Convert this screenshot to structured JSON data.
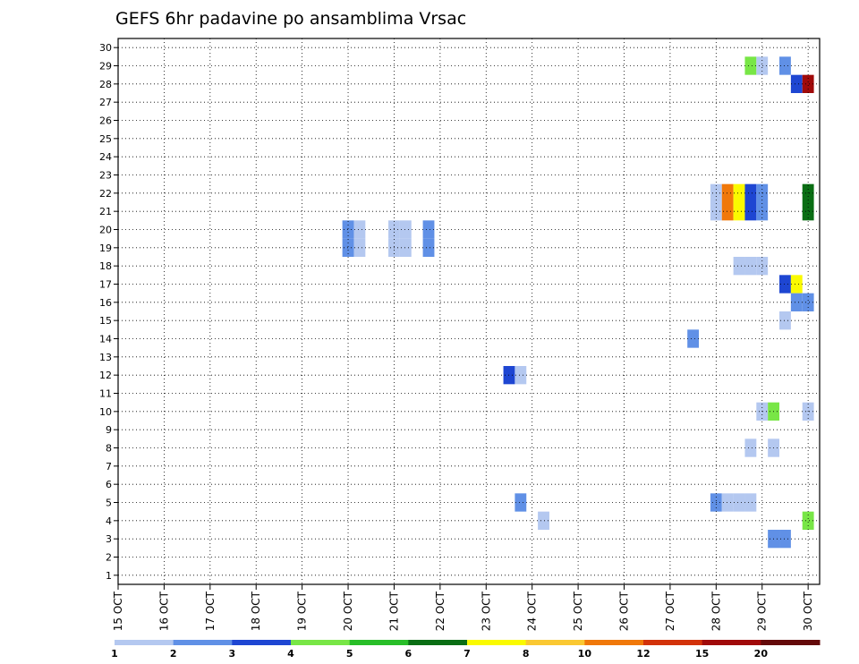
{
  "chart_data": {
    "type": "heatmap",
    "title": "GEFS 6hr padavine po ansamblima Vrsac",
    "xlabel": "",
    "ylabel": "",
    "x_tick_labels": [
      "15 OCT",
      "16 OCT",
      "17 OCT",
      "18 OCT",
      "19 OCT",
      "20 OCT",
      "21 OCT",
      "22 OCT",
      "23 OCT",
      "24 OCT",
      "25 OCT",
      "26 OCT",
      "27 OCT",
      "28 OCT",
      "29 OCT",
      "30 OCT"
    ],
    "xlim": [
      0,
      15.25
    ],
    "y_ticks": [
      1,
      2,
      3,
      4,
      5,
      6,
      7,
      8,
      9,
      10,
      11,
      12,
      13,
      14,
      15,
      16,
      17,
      18,
      19,
      20,
      21,
      22,
      23,
      24,
      25,
      26,
      27,
      28,
      29,
      30
    ],
    "ylim": [
      0.5,
      30.5
    ],
    "grid": true,
    "legend": {
      "placement": "bottom",
      "labels": [
        "1",
        "2",
        "3",
        "4",
        "5",
        "6",
        "7",
        "8",
        "10",
        "12",
        "15",
        "20"
      ],
      "colors": [
        "#b4c8f0",
        "#6090e6",
        "#1e46d2",
        "#78e646",
        "#28be28",
        "#0a6e14",
        "#fafa00",
        "#fac832",
        "#f0780a",
        "#d2320a",
        "#a00a0a",
        "#640a0a"
      ]
    },
    "cells": [
      {
        "x": 13.75,
        "member": 29,
        "color": "#78e646"
      },
      {
        "x": 14.0,
        "member": 29,
        "color": "#b4c8f0"
      },
      {
        "x": 14.5,
        "member": 29,
        "color": "#6090e6"
      },
      {
        "x": 14.75,
        "member": 28,
        "color": "#1e46d2"
      },
      {
        "x": 15.0,
        "member": 28,
        "color": "#a00a0a"
      },
      {
        "x": 13.0,
        "member": 22,
        "color": "#b4c8f0"
      },
      {
        "x": 13.25,
        "member": 22,
        "color": "#f0780a"
      },
      {
        "x": 13.5,
        "member": 22,
        "color": "#fafa00"
      },
      {
        "x": 13.75,
        "member": 22,
        "color": "#1e46d2"
      },
      {
        "x": 14.0,
        "member": 22,
        "color": "#6090e6"
      },
      {
        "x": 15.0,
        "member": 22,
        "color": "#0a6e14"
      },
      {
        "x": 13.0,
        "member": 21,
        "color": "#b4c8f0"
      },
      {
        "x": 13.25,
        "member": 21,
        "color": "#f0780a"
      },
      {
        "x": 13.5,
        "member": 21,
        "color": "#fafa00"
      },
      {
        "x": 13.75,
        "member": 21,
        "color": "#1e46d2"
      },
      {
        "x": 14.0,
        "member": 21,
        "color": "#6090e6"
      },
      {
        "x": 15.0,
        "member": 21,
        "color": "#0a6e14"
      },
      {
        "x": 5.0,
        "member": 20,
        "color": "#6090e6"
      },
      {
        "x": 5.25,
        "member": 20,
        "color": "#b4c8f0"
      },
      {
        "x": 6.0,
        "member": 20,
        "color": "#b4c8f0"
      },
      {
        "x": 6.25,
        "member": 20,
        "color": "#b4c8f0"
      },
      {
        "x": 6.75,
        "member": 20,
        "color": "#6090e6"
      },
      {
        "x": 5.0,
        "member": 19,
        "color": "#6090e6"
      },
      {
        "x": 5.25,
        "member": 19,
        "color": "#b4c8f0"
      },
      {
        "x": 6.0,
        "member": 19,
        "color": "#b4c8f0"
      },
      {
        "x": 6.25,
        "member": 19,
        "color": "#b4c8f0"
      },
      {
        "x": 6.75,
        "member": 19,
        "color": "#6090e6"
      },
      {
        "x": 13.5,
        "member": 18,
        "color": "#b4c8f0"
      },
      {
        "x": 13.75,
        "member": 18,
        "color": "#b4c8f0"
      },
      {
        "x": 14.0,
        "member": 18,
        "color": "#b4c8f0"
      },
      {
        "x": 14.5,
        "member": 17,
        "color": "#1e46d2"
      },
      {
        "x": 14.75,
        "member": 17,
        "color": "#fafa00"
      },
      {
        "x": 14.75,
        "member": 16,
        "color": "#6090e6"
      },
      {
        "x": 15.0,
        "member": 16,
        "color": "#6090e6"
      },
      {
        "x": 14.5,
        "member": 15,
        "color": "#b4c8f0"
      },
      {
        "x": 12.5,
        "member": 14,
        "color": "#6090e6"
      },
      {
        "x": 8.5,
        "member": 12,
        "color": "#1e46d2"
      },
      {
        "x": 8.75,
        "member": 12,
        "color": "#b4c8f0"
      },
      {
        "x": 14.0,
        "member": 10,
        "color": "#b4c8f0"
      },
      {
        "x": 14.25,
        "member": 10,
        "color": "#78e646"
      },
      {
        "x": 15.0,
        "member": 10,
        "color": "#b4c8f0"
      },
      {
        "x": 13.75,
        "member": 8,
        "color": "#b4c8f0"
      },
      {
        "x": 14.25,
        "member": 8,
        "color": "#b4c8f0"
      },
      {
        "x": 8.75,
        "member": 5,
        "color": "#6090e6"
      },
      {
        "x": 13.0,
        "member": 5,
        "color": "#6090e6"
      },
      {
        "x": 13.25,
        "member": 5,
        "color": "#b4c8f0"
      },
      {
        "x": 13.5,
        "member": 5,
        "color": "#b4c8f0"
      },
      {
        "x": 13.75,
        "member": 5,
        "color": "#b4c8f0"
      },
      {
        "x": 9.25,
        "member": 4,
        "color": "#b4c8f0"
      },
      {
        "x": 15.0,
        "member": 4,
        "color": "#78e646"
      },
      {
        "x": 14.25,
        "member": 3,
        "color": "#6090e6"
      },
      {
        "x": 14.5,
        "member": 3,
        "color": "#6090e6"
      }
    ]
  }
}
